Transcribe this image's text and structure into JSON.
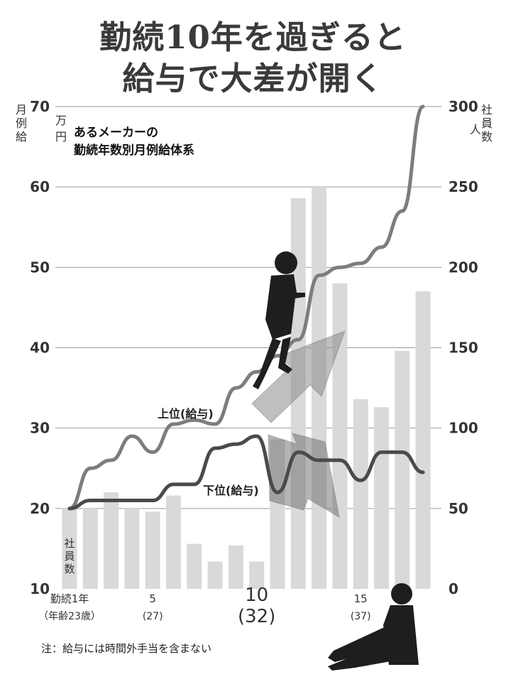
{
  "title_line1": "勤続10年を過ぎると",
  "title_line2": "給与で大差が開く",
  "note": "注：給与には時間外手当を含まない",
  "chart_data": {
    "type": "bar+line",
    "subtitle_line1": "あるメーカーの",
    "subtitle_line2": "勤続年数別月例給体系",
    "left_axis": {
      "label": "月例給",
      "unit": "万円",
      "range": [
        10,
        70
      ],
      "ticks": [
        10,
        20,
        30,
        40,
        50,
        60,
        70
      ]
    },
    "right_axis": {
      "label": "社員数",
      "unit": "人",
      "range": [
        0,
        300
      ],
      "ticks": [
        0,
        50,
        100,
        150,
        200,
        250,
        300
      ]
    },
    "bar_series_label": "社員数",
    "x_years": [
      1,
      2,
      3,
      4,
      5,
      6,
      7,
      8,
      9,
      10,
      11,
      12,
      13,
      14,
      15,
      16,
      17,
      18
    ],
    "x_tick_labels": [
      {
        "year": 1,
        "label": "勤続1年",
        "sub": "（年齢23歳）"
      },
      {
        "year": 5,
        "label": "5",
        "sub": "(27)"
      },
      {
        "year": 10,
        "label": "10",
        "sub": "(32)"
      },
      {
        "year": 15,
        "label": "15",
        "sub": "(37)"
      }
    ],
    "series": [
      {
        "name": "社員数",
        "kind": "bar",
        "axis": "right",
        "values": [
          50,
          50,
          60,
          50,
          48,
          58,
          28,
          17,
          27,
          17,
          93,
          243,
          250,
          190,
          118,
          113,
          148,
          185
        ],
        "color": "#d9d9d9"
      },
      {
        "name": "上位（給与）",
        "kind": "line",
        "axis": "left",
        "label": "上位(給与)",
        "values": [
          20,
          25,
          26,
          29,
          27,
          30.5,
          31,
          30.5,
          35,
          37,
          39,
          41,
          49,
          50,
          50.5,
          52.5,
          57,
          70
        ],
        "color": "#7d7d7d"
      },
      {
        "name": "下位（給与）",
        "kind": "line",
        "axis": "left",
        "label": "下位(給与)",
        "values": [
          20,
          21,
          21,
          21,
          21,
          23,
          23,
          27.5,
          28,
          29,
          22,
          27,
          26,
          26,
          23.5,
          27,
          27,
          24.5
        ],
        "color": "#4a4a4a"
      }
    ]
  }
}
